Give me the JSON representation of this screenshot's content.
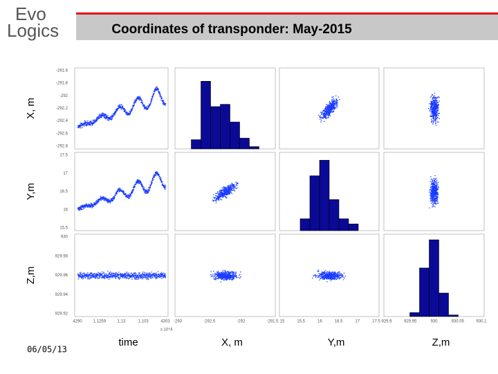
{
  "header": {
    "logo_top": "Evo",
    "logo_bottom": "Logics",
    "title": "Coordinates of transponder: May-2015"
  },
  "footer": {
    "date": "06/05/13"
  },
  "plot_matrix": {
    "row_labels": [
      "X, m",
      "Y,m",
      "Z,m"
    ],
    "column_labels": [
      "time",
      "X, m",
      "Y,m",
      "Z,m"
    ],
    "row_ticks": [
      [
        "-291.6",
        "-291.8",
        "-292",
        "-292.2",
        "-292.4",
        "-292.6",
        "-292.8"
      ],
      [
        "17.5",
        "17",
        "16.5",
        "16",
        "15.5"
      ],
      [
        "930",
        "929.98",
        "929.96",
        "929.94",
        "929.92"
      ]
    ],
    "column_ticks": [
      [
        "4290",
        "1.1259",
        "1.13",
        "1.103",
        "4303"
      ],
      [
        "-293",
        "-292.5",
        "-292",
        "-291.5"
      ],
      [
        "15",
        "15.5",
        "16",
        "16.5",
        "17",
        "17.5"
      ],
      [
        "929.9",
        "929.95",
        "930",
        "930.05",
        "930.1"
      ]
    ],
    "time_exponent": "x 10^4",
    "histograms": [
      [
        12,
        88,
        55,
        58,
        35,
        14,
        3
      ],
      [
        16,
        74,
        95,
        42,
        16,
        9
      ],
      [
        5,
        62,
        98,
        30,
        2
      ]
    ]
  }
}
